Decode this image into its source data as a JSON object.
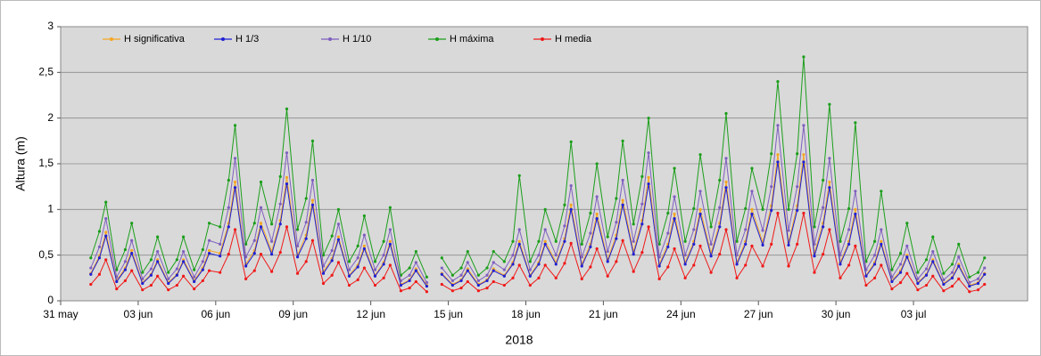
{
  "chart_data": {
    "type": "line",
    "ylabel": "Altura (m)",
    "xlabel": "2018",
    "ylim": [
      0,
      3
    ],
    "yticks": [
      0,
      {
        "value": 0.5,
        "label": "0,5"
      },
      1,
      {
        "value": 1.5,
        "label": "1,5"
      },
      2,
      {
        "value": 2.5,
        "label": "2,5"
      },
      3
    ],
    "xlim": [
      "2018-05-31T00:00",
      "2018-07-07T10:00"
    ],
    "xticks": [
      {
        "value": "2018-05-31T00:00",
        "label": "31 may"
      },
      {
        "value": "2018-06-03T00:00",
        "label": "03 jun"
      },
      {
        "value": "2018-06-06T00:00",
        "label": "06 jun"
      },
      {
        "value": "2018-06-09T00:00",
        "label": "09 jun"
      },
      {
        "value": "2018-06-12T00:00",
        "label": "12 jun"
      },
      {
        "value": "2018-06-15T00:00",
        "label": "15 jun"
      },
      {
        "value": "2018-06-18T00:00",
        "label": "18 jun"
      },
      {
        "value": "2018-06-21T00:00",
        "label": "21 jun"
      },
      {
        "value": "2018-06-24T00:00",
        "label": "24 jun"
      },
      {
        "value": "2018-06-27T00:00",
        "label": "27 jun"
      },
      {
        "value": "2018-06-30T00:00",
        "label": "30 jun"
      },
      {
        "value": "2018-07-03T00:00",
        "label": "03 jul"
      }
    ],
    "grid": true,
    "legend": "top-left",
    "x": [
      "2018-06-01T04:00",
      "2018-06-01T12:00",
      "2018-06-01T18:00",
      "2018-06-02T04:00",
      "2018-06-02T12:00",
      "2018-06-02T18:00",
      "2018-06-03T04:00",
      "2018-06-03T12:00",
      "2018-06-03T18:00",
      "2018-06-04T04:00",
      "2018-06-04T12:00",
      "2018-06-04T18:00",
      "2018-06-05T04:00",
      "2018-06-05T12:00",
      "2018-06-05T18:00",
      "2018-06-06T04:00",
      "2018-06-06T12:00",
      "2018-06-06T18:00",
      "2018-06-07T04:00",
      "2018-06-07T12:00",
      "2018-06-07T18:00",
      "2018-06-08T04:00",
      "2018-06-08T12:00",
      "2018-06-08T18:00",
      "2018-06-09T04:00",
      "2018-06-09T12:00",
      "2018-06-09T18:00",
      "2018-06-10T04:00",
      "2018-06-10T12:00",
      "2018-06-10T18:00",
      "2018-06-11T04:00",
      "2018-06-11T12:00",
      "2018-06-11T18:00",
      "2018-06-12T04:00",
      "2018-06-12T12:00",
      "2018-06-12T18:00",
      "2018-06-13T04:00",
      "2018-06-13T12:00",
      "2018-06-13T18:00",
      "2018-06-14T04:00",
      "2018-06-14T12:00",
      "2018-06-14T18:00",
      "2018-06-15T04:00",
      "2018-06-15T12:00",
      "2018-06-15T18:00",
      "2018-06-16T04:00",
      "2018-06-16T12:00",
      "2018-06-16T18:00",
      "2018-06-17T04:00",
      "2018-06-17T12:00",
      "2018-06-17T18:00",
      "2018-06-18T04:00",
      "2018-06-18T12:00",
      "2018-06-18T18:00",
      "2018-06-19T04:00",
      "2018-06-19T12:00",
      "2018-06-19T18:00",
      "2018-06-20T04:00",
      "2018-06-20T12:00",
      "2018-06-20T18:00",
      "2018-06-21T04:00",
      "2018-06-21T12:00",
      "2018-06-21T18:00",
      "2018-06-22T04:00",
      "2018-06-22T12:00",
      "2018-06-22T18:00",
      "2018-06-23T04:00",
      "2018-06-23T12:00",
      "2018-06-23T18:00",
      "2018-06-24T04:00",
      "2018-06-24T12:00",
      "2018-06-24T18:00",
      "2018-06-25T04:00",
      "2018-06-25T12:00",
      "2018-06-25T18:00",
      "2018-06-26T04:00",
      "2018-06-26T12:00",
      "2018-06-26T18:00",
      "2018-06-27T04:00",
      "2018-06-27T12:00",
      "2018-06-27T18:00",
      "2018-06-28T04:00",
      "2018-06-28T12:00",
      "2018-06-28T18:00",
      "2018-06-29T04:00",
      "2018-06-29T12:00",
      "2018-06-29T18:00",
      "2018-06-30T04:00",
      "2018-06-30T12:00",
      "2018-06-30T18:00",
      "2018-07-01T04:00",
      "2018-07-01T12:00",
      "2018-07-01T18:00",
      "2018-07-02T04:00",
      "2018-07-02T12:00",
      "2018-07-02T18:00",
      "2018-07-03T04:00",
      "2018-07-03T12:00",
      "2018-07-03T18:00",
      "2018-07-04T04:00",
      "2018-07-04T12:00",
      "2018-07-04T18:00",
      "2018-07-05T04:00",
      "2018-07-05T12:00",
      "2018-07-05T18:00"
    ],
    "series": [
      {
        "name": "H significativa",
        "color": "#f5a623",
        "values": [
          0.3,
          0.49,
          0.75,
          0.22,
          0.36,
          0.55,
          0.2,
          0.29,
          0.45,
          0.2,
          0.29,
          0.45,
          0.22,
          0.36,
          0.55,
          0.52,
          0.85,
          1.3,
          0.4,
          0.55,
          0.85,
          0.54,
          0.88,
          1.35,
          0.5,
          0.72,
          1.1,
          0.32,
          0.46,
          0.7,
          0.28,
          0.39,
          0.6,
          0.28,
          0.42,
          0.65,
          0.18,
          0.23,
          0.35,
          0.17,
          null,
          0.3,
          0.18,
          0.23,
          0.35,
          0.18,
          0.23,
          0.35,
          0.28,
          0.42,
          0.65,
          0.28,
          0.42,
          0.65,
          0.42,
          0.68,
          1.05,
          0.4,
          0.62,
          0.95,
          0.45,
          0.72,
          1.1,
          0.54,
          0.88,
          1.35,
          0.4,
          0.62,
          0.95,
          0.42,
          0.65,
          1.0,
          0.52,
          0.85,
          1.3,
          0.42,
          0.65,
          1.0,
          0.64,
          1.04,
          1.6,
          0.64,
          1.04,
          1.6,
          0.52,
          0.85,
          1.3,
          0.42,
          0.65,
          1.0,
          0.28,
          0.42,
          0.65,
          0.22,
          0.33,
          0.5,
          0.2,
          0.29,
          0.45,
          0.19,
          0.26,
          0.4,
          0.17,
          0.2,
          0.3
        ]
      },
      {
        "name": "H 1/3",
        "color": "#1f1fd6",
        "values": [
          0.29,
          0.47,
          0.71,
          0.21,
          0.34,
          0.52,
          0.19,
          0.28,
          0.43,
          0.19,
          0.28,
          0.43,
          0.21,
          0.34,
          0.52,
          0.49,
          0.81,
          1.24,
          0.38,
          0.52,
          0.81,
          0.51,
          0.84,
          1.28,
          0.48,
          0.68,
          1.05,
          0.3,
          0.44,
          0.67,
          0.27,
          0.37,
          0.57,
          0.27,
          0.4,
          0.62,
          0.17,
          0.22,
          0.33,
          0.16,
          null,
          0.29,
          0.17,
          0.22,
          0.33,
          0.17,
          0.22,
          0.33,
          0.27,
          0.4,
          0.62,
          0.27,
          0.4,
          0.62,
          0.4,
          0.65,
          1.0,
          0.38,
          0.59,
          0.9,
          0.43,
          0.68,
          1.05,
          0.51,
          0.84,
          1.28,
          0.38,
          0.59,
          0.9,
          0.4,
          0.62,
          0.95,
          0.49,
          0.81,
          1.24,
          0.4,
          0.62,
          0.95,
          0.61,
          0.99,
          1.52,
          0.61,
          0.99,
          1.52,
          0.49,
          0.81,
          1.24,
          0.4,
          0.62,
          0.95,
          0.27,
          0.4,
          0.62,
          0.21,
          0.31,
          0.48,
          0.19,
          0.28,
          0.43,
          0.18,
          0.25,
          0.38,
          0.16,
          0.19,
          0.29
        ]
      },
      {
        "name": "H 1/10",
        "color": "#7f5fc0",
        "values": [
          0.36,
          0.59,
          0.9,
          0.26,
          0.43,
          0.66,
          0.24,
          0.35,
          0.54,
          0.24,
          0.35,
          0.54,
          0.26,
          0.43,
          0.66,
          0.62,
          1.02,
          1.56,
          0.48,
          0.66,
          1.02,
          0.65,
          1.06,
          1.62,
          0.6,
          0.86,
          1.32,
          0.38,
          0.55,
          0.84,
          0.34,
          0.47,
          0.72,
          0.34,
          0.5,
          0.78,
          0.22,
          0.28,
          0.42,
          0.2,
          null,
          0.36,
          0.22,
          0.28,
          0.42,
          0.22,
          0.28,
          0.42,
          0.34,
          0.5,
          0.78,
          0.34,
          0.5,
          0.78,
          0.5,
          0.82,
          1.26,
          0.48,
          0.74,
          1.14,
          0.54,
          0.86,
          1.32,
          0.65,
          1.06,
          1.62,
          0.48,
          0.74,
          1.14,
          0.5,
          0.78,
          1.2,
          0.62,
          1.02,
          1.56,
          0.5,
          0.78,
          1.2,
          0.77,
          1.25,
          1.92,
          0.77,
          1.25,
          1.92,
          0.62,
          1.02,
          1.56,
          0.5,
          0.78,
          1.2,
          0.34,
          0.5,
          0.78,
          0.26,
          0.4,
          0.6,
          0.24,
          0.35,
          0.54,
          0.23,
          0.31,
          0.48,
          0.2,
          0.24,
          0.36
        ]
      },
      {
        "name": "H máxima",
        "color": "#1a9e1a",
        "values": [
          0.47,
          0.76,
          1.08,
          0.34,
          0.56,
          0.85,
          0.31,
          0.45,
          0.7,
          0.31,
          0.45,
          0.7,
          0.34,
          0.56,
          0.85,
          0.81,
          1.32,
          1.92,
          0.62,
          0.85,
          1.3,
          0.84,
          1.36,
          2.1,
          0.78,
          1.12,
          1.75,
          0.5,
          0.71,
          1.0,
          0.43,
          0.6,
          0.93,
          0.43,
          0.65,
          1.02,
          0.28,
          0.36,
          0.54,
          0.26,
          null,
          0.47,
          0.28,
          0.36,
          0.54,
          0.28,
          0.36,
          0.54,
          0.43,
          0.65,
          1.37,
          0.43,
          0.65,
          1.0,
          0.65,
          1.05,
          1.74,
          0.62,
          0.96,
          1.5,
          0.7,
          1.12,
          1.75,
          0.84,
          1.36,
          2.0,
          0.62,
          0.96,
          1.45,
          0.65,
          1.01,
          1.6,
          0.81,
          1.32,
          2.05,
          0.65,
          1.01,
          1.45,
          1.0,
          1.61,
          2.4,
          1.0,
          1.61,
          2.67,
          0.81,
          1.32,
          2.15,
          0.65,
          1.01,
          1.95,
          0.43,
          0.65,
          1.2,
          0.34,
          0.52,
          0.85,
          0.31,
          0.45,
          0.7,
          0.3,
          0.4,
          0.62,
          0.26,
          0.31,
          0.47
        ]
      },
      {
        "name": "H media",
        "color": "#f01818",
        "values": [
          0.18,
          0.29,
          0.45,
          0.13,
          0.22,
          0.33,
          0.12,
          0.17,
          0.27,
          0.12,
          0.17,
          0.27,
          0.13,
          0.22,
          0.33,
          0.31,
          0.51,
          0.78,
          0.24,
          0.33,
          0.51,
          0.32,
          0.53,
          0.81,
          0.3,
          0.43,
          0.66,
          0.19,
          0.28,
          0.42,
          0.17,
          0.23,
          0.36,
          0.17,
          0.25,
          0.39,
          0.11,
          0.14,
          0.21,
          0.1,
          null,
          0.18,
          0.11,
          0.14,
          0.21,
          0.11,
          0.14,
          0.21,
          0.17,
          0.25,
          0.39,
          0.17,
          0.25,
          0.39,
          0.25,
          0.41,
          0.63,
          0.24,
          0.37,
          0.57,
          0.27,
          0.43,
          0.66,
          0.32,
          0.53,
          0.81,
          0.24,
          0.37,
          0.57,
          0.25,
          0.39,
          0.6,
          0.31,
          0.51,
          0.78,
          0.25,
          0.39,
          0.6,
          0.38,
          0.62,
          0.96,
          0.38,
          0.62,
          0.96,
          0.31,
          0.51,
          0.78,
          0.25,
          0.39,
          0.6,
          0.17,
          0.25,
          0.39,
          0.13,
          0.2,
          0.3,
          0.12,
          0.17,
          0.27,
          0.11,
          0.16,
          0.24,
          0.1,
          0.12,
          0.18
        ]
      }
    ]
  }
}
